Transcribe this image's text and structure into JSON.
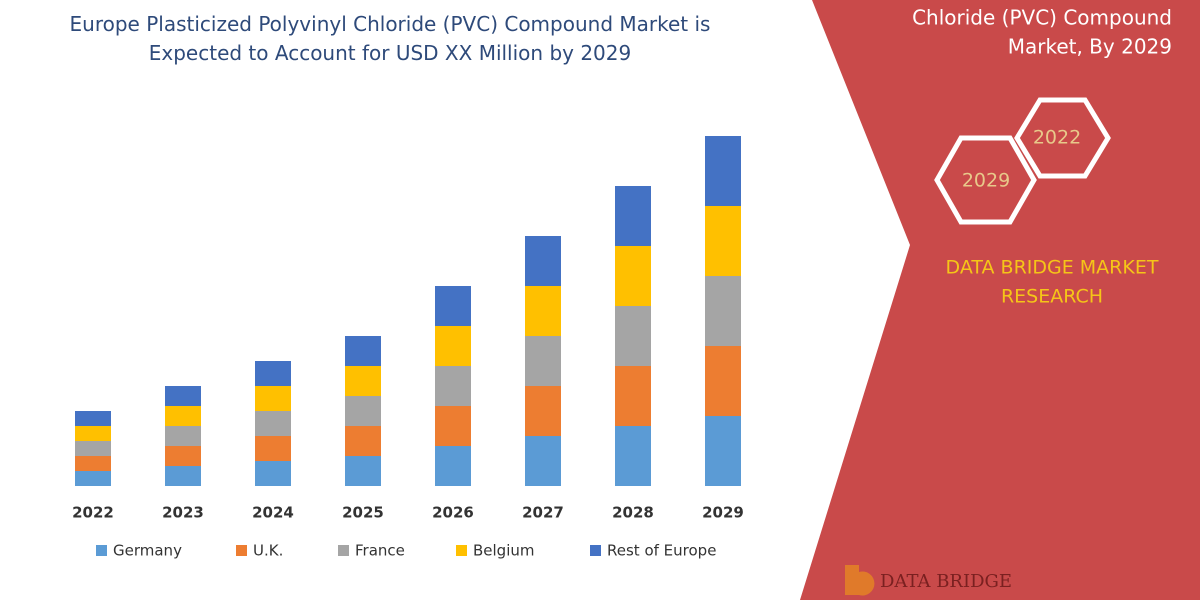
{
  "chart_data": {
    "type": "stacked-bar",
    "title": "Europe Plasticized Polyvinyl Chloride (PVC) Compound Market is Expected to Account for USD XX Million by 2029",
    "categories": [
      "2022",
      "2023",
      "2024",
      "2025",
      "2026",
      "2027",
      "2028",
      "2029"
    ],
    "series": [
      {
        "name": "Germany",
        "color": "#5b9bd5",
        "values": [
          15,
          20,
          25,
          30,
          40,
          50,
          60,
          70
        ]
      },
      {
        "name": "U.K.",
        "color": "#ed7d31",
        "values": [
          15,
          20,
          25,
          30,
          40,
          50,
          60,
          70
        ]
      },
      {
        "name": "France",
        "color": "#a5a5a5",
        "values": [
          15,
          20,
          25,
          30,
          40,
          50,
          60,
          70
        ]
      },
      {
        "name": "Belgium",
        "color": "#ffc000",
        "values": [
          15,
          20,
          25,
          30,
          40,
          50,
          60,
          70
        ]
      },
      {
        "name": "Rest of Europe",
        "color": "#4472c4",
        "values": [
          15,
          20,
          25,
          30,
          40,
          50,
          60,
          70
        ]
      }
    ],
    "ylim": [
      0,
      360
    ]
  },
  "sidebar": {
    "heading": [
      "Chloride (PVC) Compound",
      "Market, By 2029"
    ],
    "hexagons": [
      "2022",
      "2029"
    ],
    "brand": [
      "DATA BRIDGE MARKET",
      "RESEARCH"
    ],
    "logo": "DATA BRIDGE"
  }
}
